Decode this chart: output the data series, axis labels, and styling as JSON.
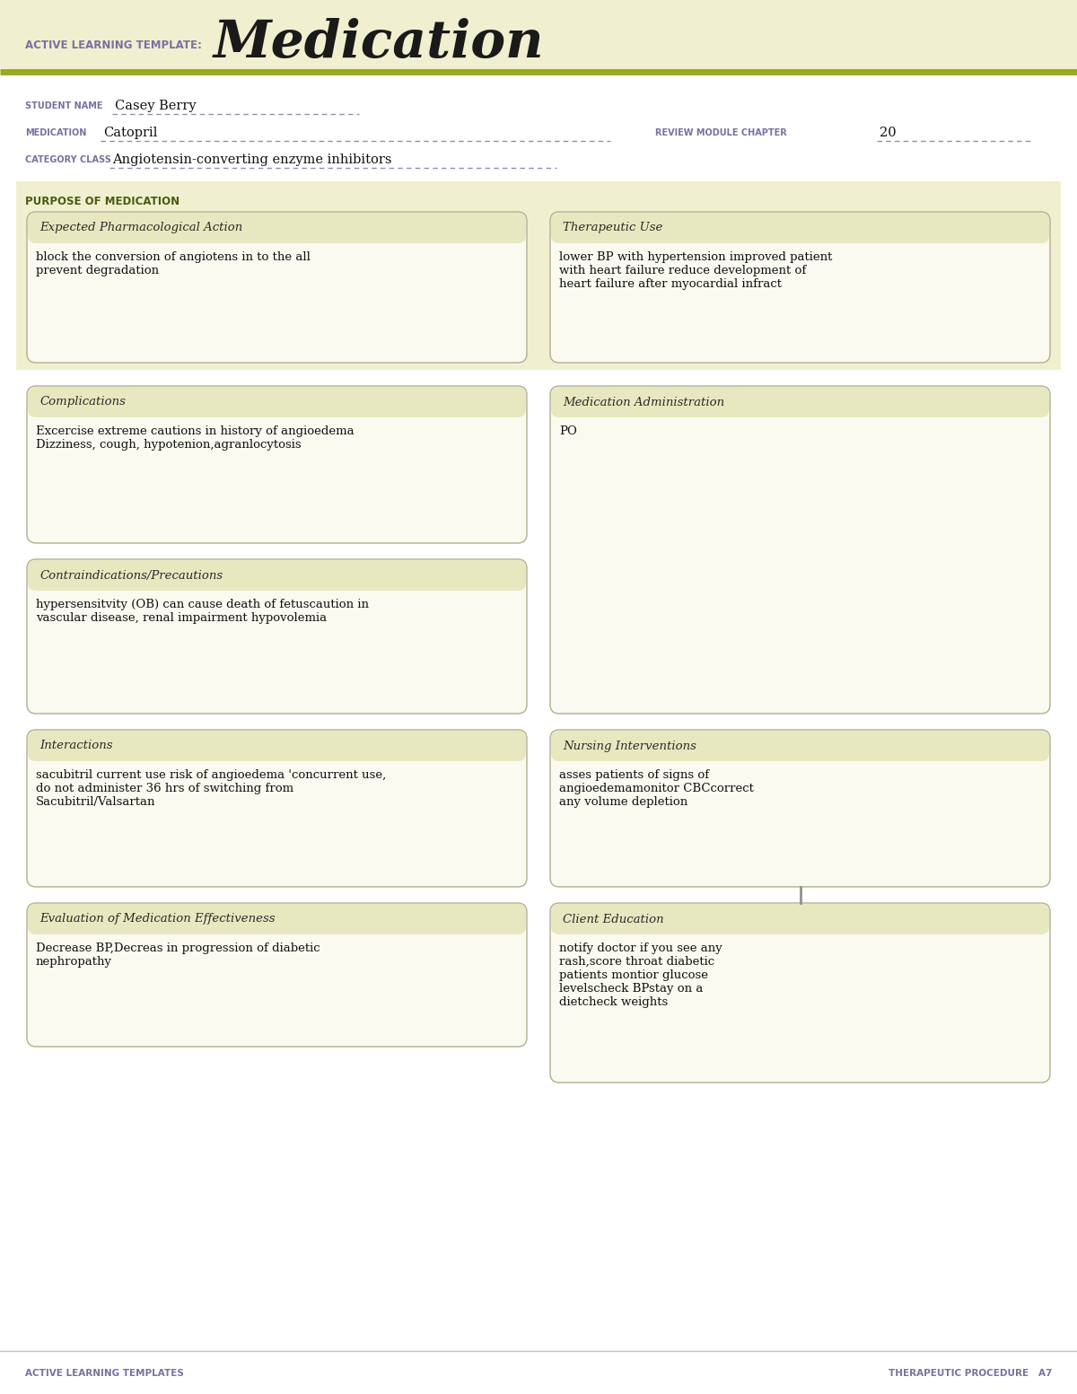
{
  "bg_color": "#f0f0d0",
  "white_bg": "#ffffff",
  "header_bg": "#e8e8c0",
  "box_face": "#fafaf0",
  "border_color": "#b0b090",
  "olive_line": "#9aaa20",
  "purple_label": "#7b6fa0",
  "dark_text": "#1a1a1a",
  "title_text": "Medication",
  "template_label": "ACTIVE LEARNING TEMPLATE:",
  "student_name_label": "STUDENT NAME",
  "student_name": "Casey Berry",
  "medication_label": "MEDICATION",
  "medication": "Catopril",
  "review_label": "REVIEW MODULE CHAPTER",
  "review_chapter": "20",
  "category_label": "CATEGORY CLASS",
  "category": "Angiotensin-converting enzyme inhibitors",
  "purpose_label": "PURPOSE OF MEDICATION",
  "box1_title": "Expected Pharmacological Action",
  "box1_text": "block the conversion of angiotens in to the all\nprevent degradation",
  "box2_title": "Therapeutic Use",
  "box2_text": "lower BP with hypertension improved patient\nwith heart failure reduce development of\nheart failure after myocardial infract",
  "box3_title": "Complications",
  "box3_text": "Excercise extreme cautions in history of angioedema\nDizziness, cough, hypotenion,agranlocytosis",
  "box4_title": "Medication Administration",
  "box4_text": "PO",
  "box5_title": "Contraindications/Precautions",
  "box5_text": "hypersensitvity (OB) can cause death of fetuscaution in\nvascular disease, renal impairment hypovolemia",
  "box6_title": "Nursing Interventions",
  "box6_text": "asses patients of signs of\nangioedemamonitor CBCcorrect\nany volume depletion",
  "box7_title": "Interactions",
  "box7_text": "sacubitril current use risk of angioedema 'concurrent use,\ndo not administer 36 hrs of switching from\nSacubitril/Valsartan",
  "box8_title": "Client Education",
  "box8_text": "notify doctor if you see any\nrash,score throat diabetic\npatients montior glucose\nlevelscheck BPstay on a\ndietcheck weights",
  "box9_title": "Evaluation of Medication Effectiveness",
  "box9_text": "Decrease BP,Decreas in progression of diabetic\nnephropathy",
  "footer_left": "ACTIVE LEARNING TEMPLATES",
  "footer_right": "THERAPEUTIC PROCEDURE   A7"
}
